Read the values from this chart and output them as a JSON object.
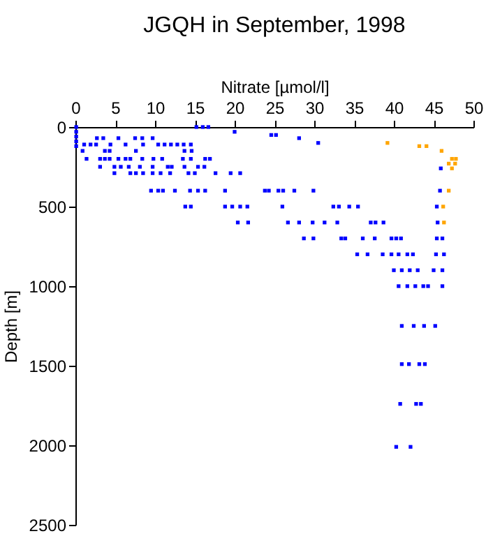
{
  "chart_data": {
    "type": "scatter",
    "title": "JGQH in September, 1998",
    "xlabel": "Nitrate [µmol/l]",
    "ylabel": "Depth [m]",
    "xlim": [
      0,
      50
    ],
    "xticks": [
      0,
      5,
      10,
      15,
      20,
      25,
      30,
      35,
      40,
      45,
      50
    ],
    "ylim": [
      2500,
      0
    ],
    "yticks": [
      0,
      500,
      1000,
      1500,
      2000,
      2500
    ],
    "marker": "square",
    "series": [
      {
        "color": "#0000ff",
        "x": [
          15.2,
          16,
          16.7,
          0.1,
          0.1,
          20,
          24.6,
          25.2,
          0.1,
          2.7,
          3.5,
          5.4,
          7.5,
          8.4,
          9.7,
          28.1,
          0.1,
          30.5,
          1.1,
          1.9,
          2.6,
          4.4,
          6.3,
          8.5,
          10.4,
          11.2,
          12,
          12.8,
          13.6,
          14.5,
          0.1,
          0.9,
          3.7,
          4.3,
          7.6,
          13.7,
          14.6,
          1.4,
          3.1,
          3.7,
          4.3,
          5.4,
          6.3,
          6.9,
          8.4,
          9.8,
          10.9,
          13.5,
          14.5,
          16.3,
          16.9,
          3.1,
          4.9,
          5.7,
          6.7,
          8.1,
          9.7,
          11.6,
          12.1,
          13.7,
          15.4,
          16.2,
          45.9,
          4.9,
          6.9,
          7.6,
          8.5,
          9.7,
          10.7,
          11.9,
          14.2,
          15,
          17.6,
          19.5,
          20.7,
          9.5,
          10.4,
          11,
          12.5,
          14.4,
          15.4,
          16.3,
          18.8,
          23.8,
          24.3,
          25.5,
          26.1,
          27.5,
          29.9,
          45.8,
          13.8,
          14.5,
          18.8,
          19.7,
          20.7,
          21.6,
          26,
          32.4,
          33.1,
          34.4,
          35.5,
          45.4,
          20.4,
          21.7,
          26.7,
          28.1,
          29.8,
          31.3,
          32.9,
          37.1,
          37.7,
          38.7,
          45.5,
          28.7,
          29.9,
          33.4,
          33.9,
          36.1,
          37.6,
          39.7,
          40.3,
          40.9,
          45.4,
          46.1,
          35.4,
          36.7,
          38.6,
          39.7,
          40.6,
          41.7,
          42.4,
          45.3,
          46.3,
          40,
          41,
          42,
          43,
          45,
          46.1,
          40.6,
          41.7,
          42.7,
          43.7,
          44.3,
          46.1,
          41,
          42.5,
          43.8,
          45.2,
          41,
          41.9,
          43.2,
          43.9,
          40.8,
          42.8,
          43.4,
          40.3,
          42.1
        ],
        "values": [
          0,
          0,
          0,
          0,
          30,
          30,
          50,
          50,
          60,
          70,
          70,
          70,
          70,
          70,
          70,
          70,
          90,
          100,
          110,
          110,
          110,
          110,
          110,
          110,
          110,
          110,
          110,
          110,
          110,
          110,
          120,
          150,
          150,
          150,
          150,
          150,
          150,
          200,
          200,
          200,
          200,
          200,
          200,
          200,
          200,
          200,
          200,
          200,
          200,
          200,
          200,
          250,
          250,
          250,
          250,
          250,
          250,
          250,
          250,
          250,
          250,
          250,
          260,
          290,
          290,
          290,
          290,
          290,
          290,
          290,
          290,
          290,
          290,
          290,
          290,
          400,
          400,
          400,
          400,
          400,
          400,
          400,
          400,
          400,
          400,
          400,
          400,
          400,
          400,
          400,
          500,
          500,
          500,
          500,
          500,
          500,
          500,
          500,
          500,
          500,
          500,
          500,
          600,
          600,
          600,
          600,
          600,
          600,
          600,
          600,
          600,
          600,
          600,
          700,
          700,
          700,
          700,
          700,
          700,
          700,
          700,
          700,
          700,
          700,
          800,
          800,
          800,
          800,
          800,
          800,
          800,
          800,
          800,
          900,
          900,
          900,
          900,
          900,
          900,
          1000,
          1000,
          1000,
          1000,
          1000,
          1000,
          1250,
          1250,
          1250,
          1250,
          1490,
          1490,
          1490,
          1490,
          1740,
          1740,
          1740,
          2010,
          2010
        ]
      },
      {
        "color": "#ffa500",
        "x": [
          39.2,
          43.2,
          44.1,
          46,
          47.3,
          47.8,
          46.9,
          47.7,
          47.3,
          46.9,
          46.2,
          46.3
        ],
        "values": [
          100,
          120,
          120,
          150,
          200,
          200,
          230,
          230,
          260,
          400,
          500,
          600
        ]
      }
    ]
  }
}
